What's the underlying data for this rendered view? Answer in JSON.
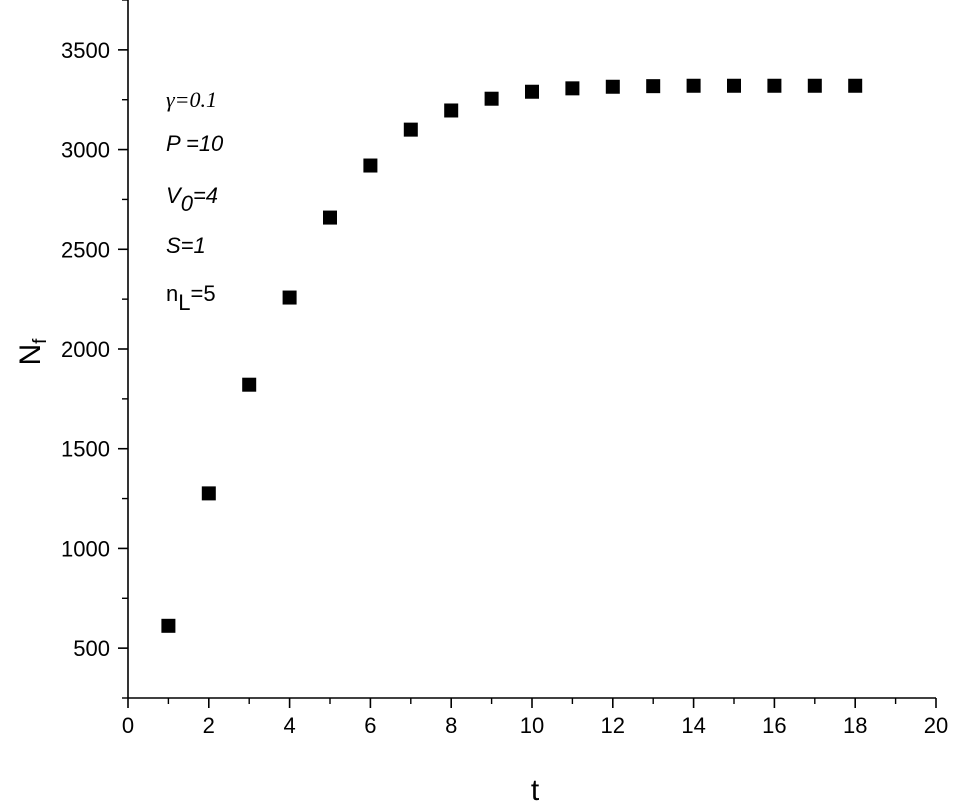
{
  "chart_data": {
    "type": "scatter",
    "title": "",
    "xlabel": "t",
    "ylabel": {
      "main": "N",
      "sub": "f"
    },
    "xlim": [
      0,
      20
    ],
    "ylim": [
      250,
      3750
    ],
    "xticks": [
      0,
      2,
      4,
      6,
      8,
      10,
      12,
      14,
      16,
      18,
      20
    ],
    "yticks": [
      500,
      1000,
      1500,
      2000,
      2500,
      3000,
      3500
    ],
    "grid": false,
    "marker": "square",
    "colors": {
      "marker": "#000000",
      "axis": "#000000"
    },
    "series": [
      {
        "x": [
          1,
          2,
          3,
          4,
          5,
          6,
          7,
          8,
          9,
          10,
          11,
          12,
          13,
          14,
          15,
          16,
          17,
          18
        ],
        "y": [
          612,
          1276,
          1821,
          2258,
          2659,
          2920,
          3100,
          3196,
          3255,
          3290,
          3307,
          3315,
          3318,
          3320,
          3320,
          3320,
          3320,
          3320
        ]
      }
    ],
    "annotations": {
      "gamma": "γ=0.1",
      "p": "P =10",
      "v0_main": "V",
      "v0_sub": "0",
      "v0_rest": "=4",
      "s": "S=1",
      "nl_main": "n",
      "nl_sub": "L",
      "nl_rest": "=5"
    }
  }
}
